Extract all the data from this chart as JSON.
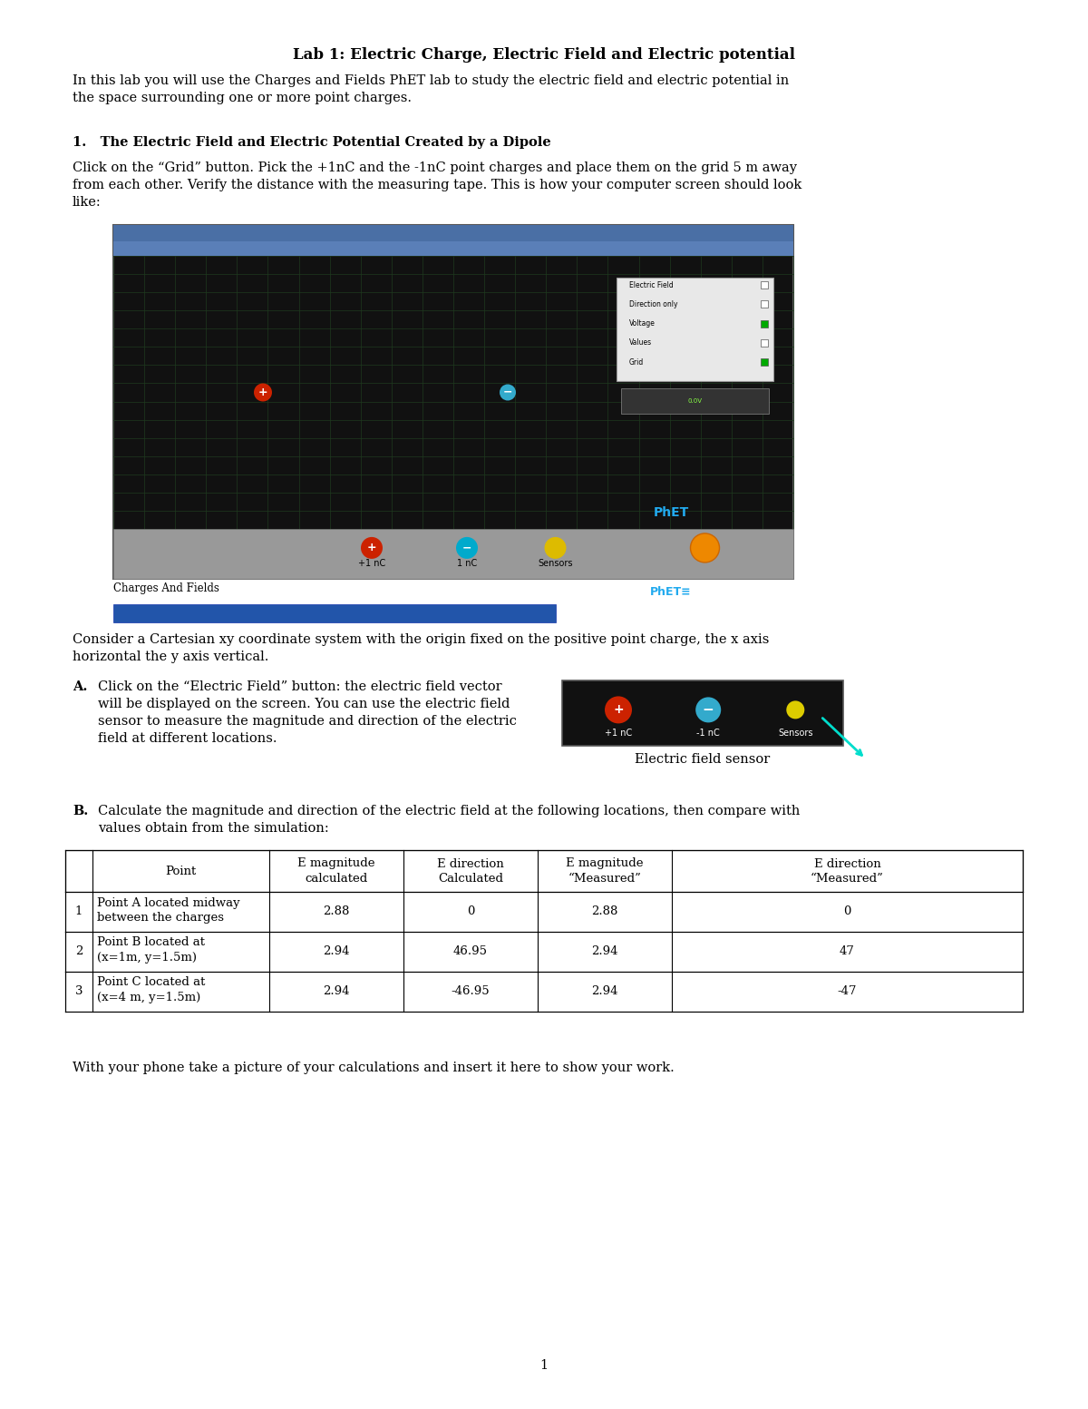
{
  "title": "Lab 1: Electric Charge, Electric Field and Electric potential",
  "intro": "In this lab you will use the Charges and Fields PhET lab to study the electric field and electric potential in\nthe space surrounding one or more point charges.",
  "section1_title": "1.   The Electric Field and Electric Potential Created by a Dipole",
  "section1_text": "Click on the “Grid” button. Pick the +1nC and the -1nC point charges and place them on the grid 5 m away\nfrom each other. Verify the distance with the measuring tape. This is how your computer screen should look\nlike:",
  "cartesian_text": "Consider a Cartesian xy coordinate system with the origin fixed on the positive point charge, the x axis\nhorizontal the y axis vertical.",
  "part_A_label": "A.",
  "part_A_text": "Click on the “Electric Field” button: the electric field vector\nwill be displayed on the screen. You can use the electric field\nsensor to measure the magnitude and direction of the electric\nfield at different locations.",
  "electric_field_sensor_caption": "Electric field sensor",
  "part_B_label": "B.",
  "part_B_text": "Calculate the magnitude and direction of the electric field at the following locations, then compare with\nvalues obtain from the simulation:",
  "table_headers": [
    "",
    "Point",
    "E magnitude\ncalculated",
    "E direction\nCalculated",
    "E magnitude\n“Measured”",
    "E direction\n“Measured”"
  ],
  "table_rows": [
    [
      "1",
      "Point A located midway\nbetween the charges",
      "2.88",
      "0",
      "2.88",
      "0"
    ],
    [
      "2",
      "Point B located at\n(x=1m, y=1.5m)",
      "2.94",
      "46.95",
      "2.94",
      "47"
    ],
    [
      "3",
      "Point C located at\n(x=4 m, y=1.5m)",
      "2.94",
      "-46.95",
      "2.94",
      "-47"
    ]
  ],
  "footer_text": "With your phone take a picture of your calculations and insert it here to show your work.",
  "page_number": "1",
  "bg_color": "#ffffff",
  "text_color": "#000000"
}
